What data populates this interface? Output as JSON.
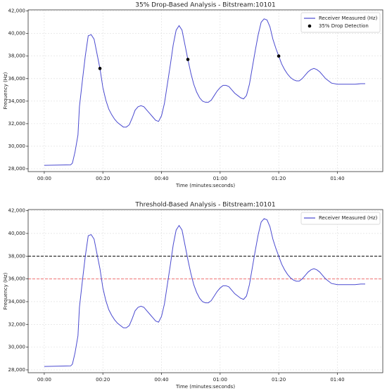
{
  "chart_data": [
    {
      "type": "line",
      "title": "35% Drop-Based Analysis - Bitstream:10101",
      "xlabel": "Time (minutes:seconds)",
      "ylabel": "Frequency (Hz)",
      "x": [
        0,
        9,
        9.6,
        10.5,
        11.5,
        12,
        13,
        14,
        15,
        16,
        17,
        18,
        19,
        20,
        21,
        22,
        23,
        24,
        25,
        27,
        28,
        29,
        30,
        31,
        32,
        33,
        34,
        35,
        36,
        37,
        38,
        39,
        40,
        41,
        42,
        43,
        44,
        45,
        46,
        47,
        48,
        49,
        50,
        51,
        52,
        53,
        54,
        55,
        56,
        57,
        58,
        59,
        60,
        61,
        62,
        63,
        64,
        65,
        66,
        67,
        68,
        69,
        70,
        71,
        72,
        73,
        74,
        75,
        76,
        77,
        78,
        79,
        80,
        81,
        82,
        83,
        84,
        85,
        86,
        87,
        88,
        89,
        90,
        91,
        92,
        93,
        94,
        95,
        96,
        97,
        98,
        100,
        102,
        104,
        106,
        108,
        109.5
      ],
      "series": [
        {
          "name": "Receiver Measured (Hz)",
          "color": "#4a4ad0",
          "values": [
            28300,
            28350,
            28500,
            29500,
            31000,
            33500,
            35800,
            38000,
            39800,
            39900,
            39500,
            38200,
            36900,
            35200,
            34100,
            33300,
            32800,
            32400,
            32100,
            31700,
            31700,
            31900,
            32500,
            33200,
            33500,
            33600,
            33500,
            33200,
            32900,
            32600,
            32300,
            32200,
            32700,
            33800,
            35500,
            37200,
            39000,
            40300,
            40700,
            40300,
            39000,
            37700,
            36500,
            35500,
            34800,
            34300,
            34000,
            33900,
            33900,
            34100,
            34500,
            34900,
            35200,
            35400,
            35400,
            35300,
            35000,
            34700,
            34500,
            34300,
            34200,
            34500,
            35500,
            37000,
            38500,
            39900,
            41000,
            41300,
            41200,
            40600,
            39500,
            38700,
            38000,
            37300,
            36800,
            36400,
            36100,
            35900,
            35800,
            35800,
            36000,
            36300,
            36600,
            36800,
            36900,
            36800,
            36600,
            36300,
            36000,
            35800,
            35600,
            35500,
            35500,
            35500,
            35500,
            35550,
            35550
          ]
        },
        {
          "name": "35% Drop Detection",
          "type": "scatter",
          "color": "#000000",
          "x": [
            19,
            49,
            80
          ],
          "values": [
            36900,
            37700,
            38000
          ]
        }
      ],
      "xlim": [
        -5.5,
        115.5
      ],
      "ylim": [
        27750,
        42100
      ],
      "xticks": [
        {
          "value": 0,
          "label": "00:00"
        },
        {
          "value": 20,
          "label": "00:20"
        },
        {
          "value": 40,
          "label": "00:40"
        },
        {
          "value": 60,
          "label": "01:00"
        },
        {
          "value": 80,
          "label": "01:20"
        },
        {
          "value": 100,
          "label": "01:40"
        }
      ],
      "yticks": [
        {
          "value": 28000,
          "label": "28,000"
        },
        {
          "value": 30000,
          "label": "30,000"
        },
        {
          "value": 32000,
          "label": "32,000"
        },
        {
          "value": 34000,
          "label": "34,000"
        },
        {
          "value": 36000,
          "label": "36,000"
        },
        {
          "value": 38000,
          "label": "38,000"
        },
        {
          "value": 40000,
          "label": "40,000"
        },
        {
          "value": 42000,
          "label": "42,000"
        }
      ],
      "grid": true,
      "legend": "upper right"
    },
    {
      "type": "line",
      "title": "Threshold-Based Analysis - Bitstream:10101",
      "xlabel": "Time (minutes:seconds)",
      "ylabel": "Frequency (Hz)",
      "x": [
        0,
        9,
        9.6,
        10.5,
        11.5,
        12,
        13,
        14,
        15,
        16,
        17,
        18,
        19,
        20,
        21,
        22,
        23,
        24,
        25,
        27,
        28,
        29,
        30,
        31,
        32,
        33,
        34,
        35,
        36,
        37,
        38,
        39,
        40,
        41,
        42,
        43,
        44,
        45,
        46,
        47,
        48,
        49,
        50,
        51,
        52,
        53,
        54,
        55,
        56,
        57,
        58,
        59,
        60,
        61,
        62,
        63,
        64,
        65,
        66,
        67,
        68,
        69,
        70,
        71,
        72,
        73,
        74,
        75,
        76,
        77,
        78,
        79,
        80,
        81,
        82,
        83,
        84,
        85,
        86,
        87,
        88,
        89,
        90,
        91,
        92,
        93,
        94,
        95,
        96,
        97,
        98,
        100,
        102,
        104,
        106,
        108,
        109.5
      ],
      "series": [
        {
          "name": "Receiver Measured (Hz)",
          "color": "#4a4ad0",
          "values": [
            28300,
            28350,
            28500,
            29500,
            31000,
            33500,
            35800,
            38000,
            39800,
            39900,
            39500,
            38200,
            36900,
            35200,
            34100,
            33300,
            32800,
            32400,
            32100,
            31700,
            31700,
            31900,
            32500,
            33200,
            33500,
            33600,
            33500,
            33200,
            32900,
            32600,
            32300,
            32200,
            32700,
            33800,
            35500,
            37200,
            39000,
            40300,
            40700,
            40300,
            39000,
            37700,
            36500,
            35500,
            34800,
            34300,
            34000,
            33900,
            33900,
            34100,
            34500,
            34900,
            35200,
            35400,
            35400,
            35300,
            35000,
            34700,
            34500,
            34300,
            34200,
            34500,
            35500,
            37000,
            38500,
            39900,
            41000,
            41300,
            41200,
            40600,
            39500,
            38700,
            38000,
            37300,
            36800,
            36400,
            36100,
            35900,
            35800,
            35800,
            36000,
            36300,
            36600,
            36800,
            36900,
            36800,
            36600,
            36300,
            36000,
            35800,
            35600,
            35500,
            35500,
            35500,
            35500,
            35550,
            35550
          ]
        }
      ],
      "thresholds": [
        {
          "value": 38000,
          "color": "#000000"
        },
        {
          "value": 36000,
          "color": "#f07070"
        }
      ],
      "xlim": [
        -5.5,
        115.5
      ],
      "ylim": [
        27750,
        42100
      ],
      "xticks": [
        {
          "value": 0,
          "label": "00:00"
        },
        {
          "value": 20,
          "label": "00:20"
        },
        {
          "value": 40,
          "label": "00:40"
        },
        {
          "value": 60,
          "label": "01:00"
        },
        {
          "value": 80,
          "label": "01:20"
        },
        {
          "value": 100,
          "label": "01:40"
        }
      ],
      "yticks": [
        {
          "value": 28000,
          "label": "28,000"
        },
        {
          "value": 30000,
          "label": "30,000"
        },
        {
          "value": 32000,
          "label": "32,000"
        },
        {
          "value": 34000,
          "label": "34,000"
        },
        {
          "value": 36000,
          "label": "36,000"
        },
        {
          "value": 38000,
          "label": "38,000"
        },
        {
          "value": 40000,
          "label": "40,000"
        },
        {
          "value": 42000,
          "label": "42,000"
        }
      ],
      "grid": true,
      "legend": "upper right"
    }
  ]
}
